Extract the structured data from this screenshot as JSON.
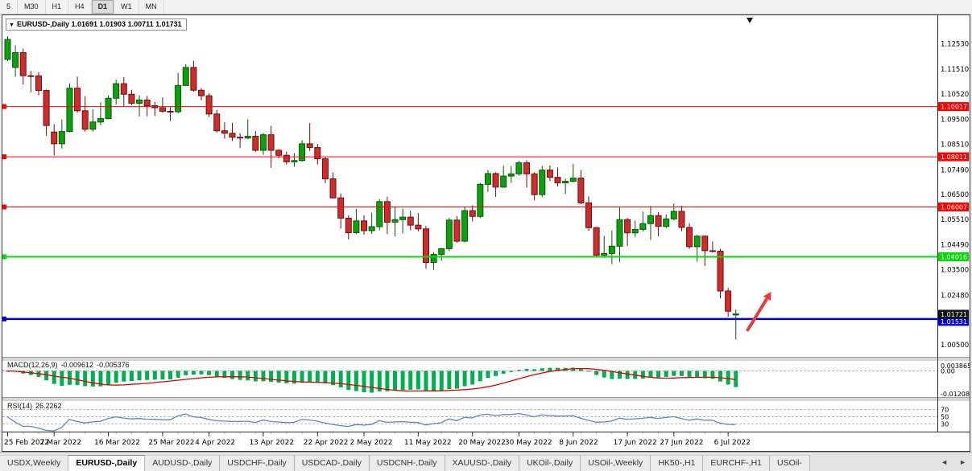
{
  "toolbar": {
    "timeframes": [
      {
        "label": "5",
        "active": false
      },
      {
        "label": "M30",
        "active": false
      },
      {
        "label": "H1",
        "active": false
      },
      {
        "label": "H4",
        "active": false
      },
      {
        "label": "D1",
        "active": true
      },
      {
        "label": "W1",
        "active": false
      },
      {
        "label": "MN",
        "active": false
      }
    ]
  },
  "chart": {
    "header": {
      "dropdown_icon": "▼",
      "symbol": "EURUSD-,Daily",
      "open": "1.01691",
      "high": "1.01903",
      "low": "1.00711",
      "close": "1.01731"
    },
    "hlines": [
      {
        "price": 1.10017,
        "label": "1.10017",
        "color": "#FF0000",
        "width": 1
      },
      {
        "price": 1.08011,
        "label": "1.08011",
        "color": "#FF0000",
        "width": 1
      },
      {
        "price": 1.06007,
        "label": "1.06007",
        "color": "#FF0000",
        "width": 1
      },
      {
        "price": 1.04016,
        "label": "1.04016",
        "color": "#00DD00",
        "width": 2
      },
      {
        "price": 1.01531,
        "label": "1.01531",
        "color": "#0000E0",
        "width": 2.5
      }
    ],
    "current_price": {
      "price": 1.01721,
      "label": "1.01721",
      "bg": "#111111"
    },
    "annotation_arrow": {
      "tail_bar": 95.5,
      "tail_price": 1.0105,
      "tip_bar": 98.6,
      "tip_price": 1.0262,
      "color": "#EC3B3B"
    }
  },
  "price_scale": {
    "labels": [
      "1.12530",
      "1.11510",
      "1.10520",
      "1.09500",
      "1.08510",
      "1.07490",
      "1.06500",
      "1.05510",
      "1.04490",
      "1.03500",
      "1.02480",
      "1.00500"
    ]
  },
  "indicators": {
    "macd": {
      "label": "MACD(12,26,9)",
      "value_main": "-0.009612",
      "value_signal": "-0.005376",
      "scale_top": "0.003865",
      "scale_zero": "0.00",
      "scale_bottom": "-0.01208",
      "hist_color": "#00B050",
      "signal_color": "#E00000"
    },
    "rsi": {
      "label": "RSI(14)",
      "value": "26.2262",
      "line_color": "#5E86C2",
      "levels": [
        {
          "value": 70,
          "label": "70"
        },
        {
          "value": 50,
          "label": "50"
        },
        {
          "value": 30,
          "label": "30"
        }
      ]
    }
  },
  "chart_data": {
    "type": "candlestick",
    "symbol": "EURUSD",
    "timeframe": "Daily",
    "up_color": "#0FA00F",
    "up_border": "#045A04",
    "down_color": "#CC2E2E",
    "down_border": "#6E0E0E",
    "ohlc": [
      [
        1.119,
        1.1283,
        1.1184,
        1.127
      ],
      [
        1.1158,
        1.1246,
        1.1121,
        1.1217
      ],
      [
        1.1217,
        1.1233,
        1.109,
        1.1125
      ],
      [
        1.1125,
        1.1144,
        1.1058,
        1.1124
      ],
      [
        1.1124,
        1.1139,
        1.1047,
        1.1066
      ],
      [
        1.1066,
        1.107,
        1.0885,
        1.0926
      ],
      [
        1.09,
        1.0931,
        1.0806,
        1.0853
      ],
      [
        1.0853,
        1.095,
        1.0834,
        1.0902
      ],
      [
        1.0902,
        1.1095,
        1.0899,
        1.1075
      ],
      [
        1.1075,
        1.1121,
        1.0977,
        1.0985
      ],
      [
        1.0985,
        1.1043,
        1.0901,
        1.0911
      ],
      [
        1.0911,
        1.0991,
        1.0902,
        1.094
      ],
      [
        1.094,
        1.1019,
        1.0927,
        1.0954
      ],
      [
        1.0954,
        1.1046,
        1.095,
        1.1035
      ],
      [
        1.1035,
        1.1109,
        1.1009,
        1.1093
      ],
      [
        1.1093,
        1.1119,
        1.1003,
        1.1051
      ],
      [
        1.1051,
        1.1069,
        1.1008,
        1.1015
      ],
      [
        1.1015,
        1.1047,
        1.0962,
        1.1028
      ],
      [
        1.1028,
        1.1044,
        1.0963,
        1.1005
      ],
      [
        1.1005,
        1.1021,
        1.0964,
        1.0997
      ],
      [
        1.0997,
        1.1038,
        1.0977,
        1.0983
      ],
      [
        1.0983,
        1.0999,
        1.0944,
        1.0981
      ],
      [
        1.0981,
        1.1137,
        1.0975,
        1.1086
      ],
      [
        1.1086,
        1.1171,
        1.1084,
        1.1158
      ],
      [
        1.1158,
        1.1185,
        1.1061,
        1.1067
      ],
      [
        1.1067,
        1.1076,
        1.1027,
        1.1045
      ],
      [
        1.1045,
        1.1055,
        1.096,
        1.0972
      ],
      [
        1.0972,
        1.0988,
        1.0898,
        1.0905
      ],
      [
        1.0905,
        1.0939,
        1.0874,
        1.0895
      ],
      [
        1.0895,
        1.0937,
        1.0864,
        1.0879
      ],
      [
        1.0879,
        1.0895,
        1.0836,
        1.0876
      ],
      [
        1.0876,
        1.0951,
        1.0872,
        1.0883
      ],
      [
        1.0883,
        1.0904,
        1.0821,
        1.0827
      ],
      [
        1.0827,
        1.0896,
        1.0809,
        1.0889
      ],
      [
        1.0889,
        1.0925,
        1.0757,
        1.0827
      ],
      [
        1.0827,
        1.0832,
        1.0795,
        1.0807
      ],
      [
        1.0807,
        1.0822,
        1.077,
        1.0781
      ],
      [
        1.0781,
        1.0815,
        1.0761,
        1.0786
      ],
      [
        1.0786,
        1.0867,
        1.0782,
        1.0853
      ],
      [
        1.0853,
        1.0936,
        1.0824,
        1.0838
      ],
      [
        1.0838,
        1.0852,
        1.077,
        1.0793
      ],
      [
        1.0793,
        1.0802,
        1.0696,
        1.0713
      ],
      [
        1.0713,
        1.0738,
        1.0635,
        1.0637
      ],
      [
        1.0637,
        1.0655,
        1.0514,
        1.0556
      ],
      [
        1.0556,
        1.0567,
        1.0471,
        1.0498
      ],
      [
        1.0498,
        1.0593,
        1.0492,
        1.0545
      ],
      [
        1.0545,
        1.0568,
        1.049,
        1.0506
      ],
      [
        1.0506,
        1.0578,
        1.0493,
        1.0522
      ],
      [
        1.0522,
        1.0632,
        1.0508,
        1.0622
      ],
      [
        1.0622,
        1.0642,
        1.0492,
        1.054
      ],
      [
        1.054,
        1.0599,
        1.0483,
        1.055
      ],
      [
        1.055,
        1.0594,
        1.0495,
        1.056
      ],
      [
        1.056,
        1.0585,
        1.0507,
        1.0528
      ],
      [
        1.0528,
        1.0576,
        1.0503,
        1.0513
      ],
      [
        1.0513,
        1.0525,
        1.0354,
        1.0379
      ],
      [
        1.0379,
        1.042,
        1.0349,
        1.0411
      ],
      [
        1.0411,
        1.0437,
        1.0386,
        1.0434
      ],
      [
        1.0434,
        1.0557,
        1.0424,
        1.0548
      ],
      [
        1.0548,
        1.0564,
        1.0458,
        1.0464
      ],
      [
        1.0464,
        1.0599,
        1.0459,
        1.0586
      ],
      [
        1.0586,
        1.0607,
        1.0543,
        1.0563
      ],
      [
        1.0563,
        1.0697,
        1.0556,
        1.0691
      ],
      [
        1.0691,
        1.0748,
        1.0661,
        1.0734
      ],
      [
        1.0734,
        1.0739,
        1.0641,
        1.068
      ],
      [
        1.068,
        1.0765,
        1.0677,
        1.0724
      ],
      [
        1.0724,
        1.0764,
        1.0697,
        1.0733
      ],
      [
        1.0733,
        1.0786,
        1.0726,
        1.0777
      ],
      [
        1.0777,
        1.0787,
        1.0678,
        1.0733
      ],
      [
        1.0733,
        1.0739,
        1.0627,
        1.065
      ],
      [
        1.065,
        1.0764,
        1.0641,
        1.0748
      ],
      [
        1.0748,
        1.0766,
        1.0704,
        1.0719
      ],
      [
        1.0719,
        1.0758,
        1.0683,
        1.0697
      ],
      [
        1.0697,
        1.0714,
        1.0652,
        1.0703
      ],
      [
        1.0703,
        1.0773,
        1.07,
        1.0716
      ],
      [
        1.0716,
        1.0748,
        1.0612,
        1.0617
      ],
      [
        1.0617,
        1.0643,
        1.0505,
        1.0518
      ],
      [
        1.0518,
        1.0521,
        1.0399,
        1.0408
      ],
      [
        1.0408,
        1.0485,
        1.0397,
        1.0415
      ],
      [
        1.0415,
        1.0507,
        1.0373,
        1.0444
      ],
      [
        1.0444,
        1.0601,
        1.0381,
        1.055
      ],
      [
        1.055,
        1.0557,
        1.0444,
        1.0497
      ],
      [
        1.0497,
        1.0546,
        1.0481,
        1.0511
      ],
      [
        1.0511,
        1.0582,
        1.0503,
        1.0534
      ],
      [
        1.0534,
        1.0605,
        1.0469,
        1.0566
      ],
      [
        1.0566,
        1.058,
        1.0483,
        1.0523
      ],
      [
        1.0523,
        1.0571,
        1.0516,
        1.0553
      ],
      [
        1.0553,
        1.0615,
        1.0547,
        1.0583
      ],
      [
        1.0583,
        1.0606,
        1.0503,
        1.0519
      ],
      [
        1.0519,
        1.0536,
        1.0433,
        1.0442
      ],
      [
        1.0442,
        1.0489,
        1.0382,
        1.0484
      ],
      [
        1.0484,
        1.0486,
        1.0365,
        1.0426
      ],
      [
        1.0426,
        1.0463,
        1.0419,
        1.0424
      ],
      [
        1.0424,
        1.0434,
        1.0235,
        1.0265
      ],
      [
        1.0265,
        1.0277,
        1.0162,
        1.0184
      ],
      [
        1.01691,
        1.01903,
        1.00711,
        1.01731
      ]
    ],
    "ticks": [
      {
        "i": 0,
        "label": "25 Feb 2022"
      },
      {
        "i": 6,
        "label": "7 Mar 2022"
      },
      {
        "i": 13,
        "label": "16 Mar 2022"
      },
      {
        "i": 20,
        "label": "25 Mar 2022"
      },
      {
        "i": 26,
        "label": "4 Apr 2022"
      },
      {
        "i": 33,
        "label": "13 Apr 2022"
      },
      {
        "i": 40,
        "label": "22 Apr 2022"
      },
      {
        "i": 46,
        "label": "2 May 2022"
      },
      {
        "i": 53,
        "label": "11 May 2022"
      },
      {
        "i": 60,
        "label": "20 May 2022"
      },
      {
        "i": 66,
        "label": "30 May 2022"
      },
      {
        "i": 73,
        "label": "8 Jun 2022"
      },
      {
        "i": 80,
        "label": "17 Jun 2022"
      },
      {
        "i": 86,
        "label": "27 Jun 2022"
      },
      {
        "i": 93,
        "label": "6 Jul 2022"
      }
    ]
  },
  "tabbar": {
    "scroll_left": "◄",
    "scroll_right": "►",
    "tabs": [
      {
        "label": "USDX,Weekly",
        "active": false
      },
      {
        "label": "EURUSD-,Daily",
        "active": true
      },
      {
        "label": "AUDUSD-,Daily",
        "active": false
      },
      {
        "label": "USDCHF-,Daily",
        "active": false
      },
      {
        "label": "USDCAD-,Daily",
        "active": false
      },
      {
        "label": "USDCNH-,Daily",
        "active": false
      },
      {
        "label": "XAUUSD-,Daily",
        "active": false
      },
      {
        "label": "UKOil-,Daily",
        "active": false
      },
      {
        "label": "USOil-,Weekly",
        "active": false
      },
      {
        "label": "HK50-,H1",
        "active": false
      },
      {
        "label": "EURCHF-,H1",
        "active": false
      },
      {
        "label": "USOil-",
        "active": false
      }
    ]
  }
}
